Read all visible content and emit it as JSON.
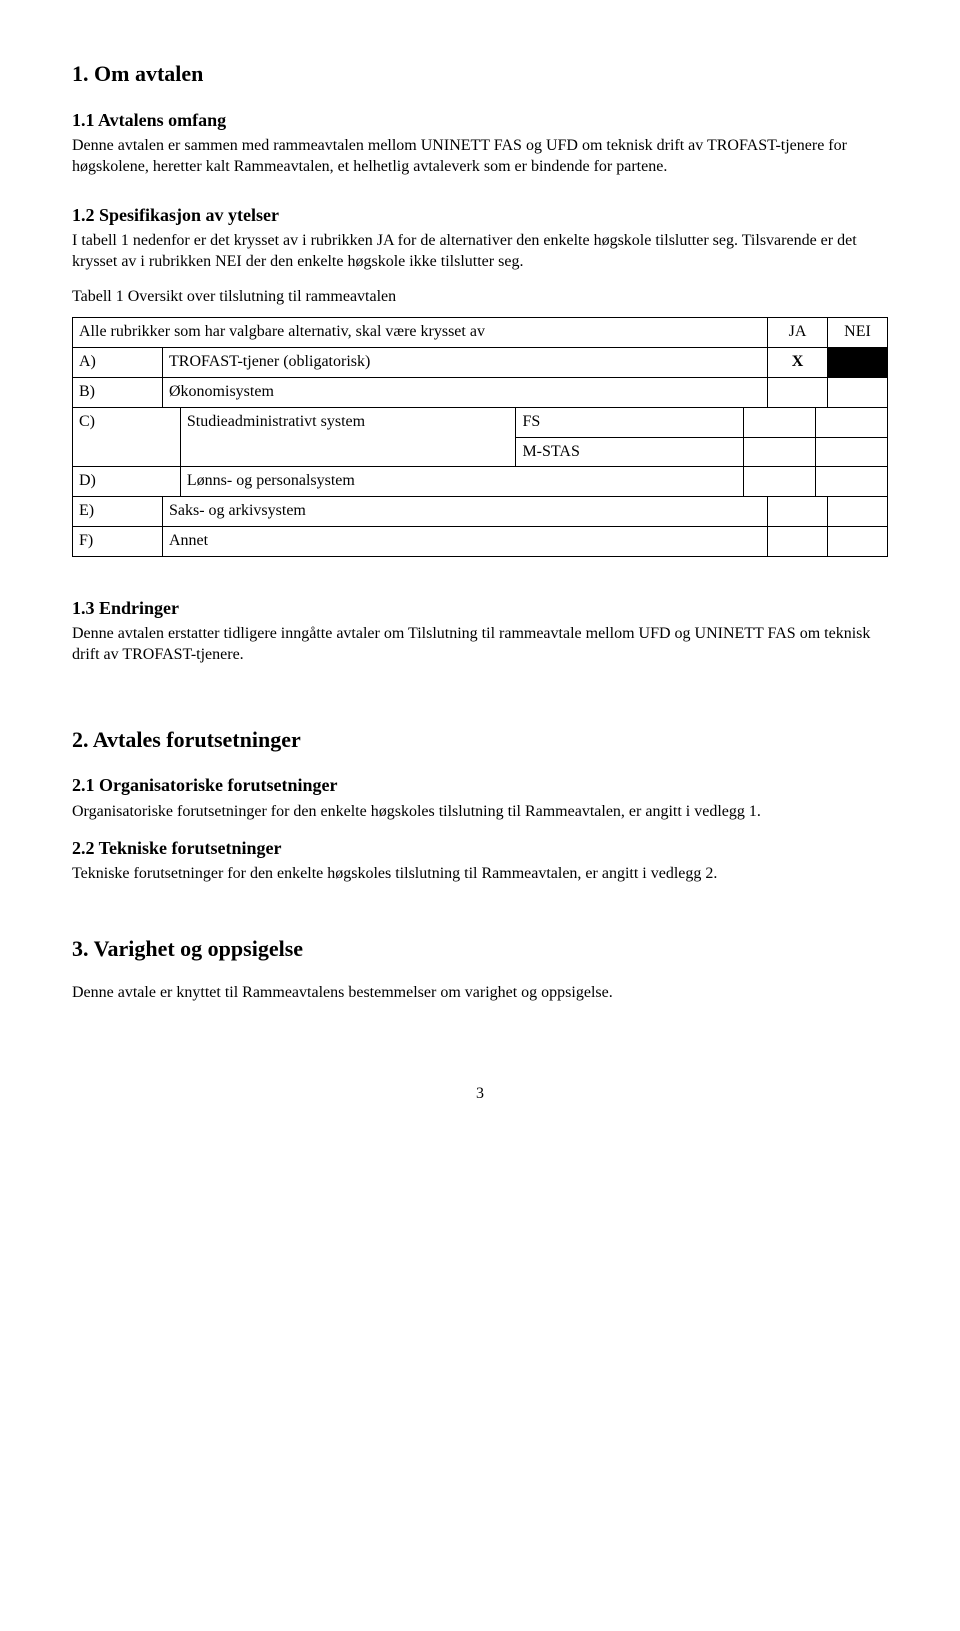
{
  "s1": {
    "title": "1. Om avtalen",
    "sub1": {
      "title": "1.1 Avtalens omfang",
      "body": "Denne avtalen er sammen med rammeavtalen mellom UNINETT FAS og UFD om teknisk drift av TROFAST-tjenere for høgskolene, heretter kalt Rammeavtalen, et helhetlig avtaleverk som er bindende for partene."
    },
    "sub2": {
      "title": "1.2 Spesifikasjon av ytelser",
      "body": "I tabell 1 nedenfor er det krysset av i rubrikken JA for de alternativer den enkelte høgskole tilslutter seg. Tilsvarende er det krysset av i rubrikken NEI der den enkelte høgskole ikke tilslutter seg.",
      "caption": "Tabell 1  Oversikt over tilslutning til rammeavtalen",
      "header_rubrikker": "Alle rubrikker som har valgbare alternativ, skal være krysset av",
      "header_ja": "JA",
      "header_nei": "NEI",
      "rowA": {
        "letter": "A)",
        "label": "TROFAST-tjener (obligatorisk)",
        "mark": "X"
      },
      "rowB": {
        "letter": "B)",
        "label": "Økonomisystem"
      },
      "rowC": {
        "letter": "C)",
        "label": "Studieadministrativt system",
        "opt1": "FS",
        "opt2": "M-STAS"
      },
      "rowD": {
        "letter": "D)",
        "label": "Lønns- og personalsystem"
      },
      "rowE": {
        "letter": "E)",
        "label": "Saks- og arkivsystem"
      },
      "rowF": {
        "letter": "F)",
        "label": "Annet"
      }
    },
    "sub3": {
      "title": "1.3 Endringer",
      "body": "Denne avtalen erstatter tidligere inngåtte avtaler om Tilslutning til rammeavtale mellom UFD og UNINETT FAS om teknisk drift av TROFAST-tjenere."
    }
  },
  "s2": {
    "title": "2. Avtales forutsetninger",
    "sub1": {
      "title": "2.1 Organisatoriske forutsetninger",
      "body": "Organisatoriske forutsetninger for den enkelte høgskoles tilslutning til Rammeavtalen, er angitt i vedlegg 1."
    },
    "sub2": {
      "title": "2.2 Tekniske forutsetninger",
      "body": "Tekniske forutsetninger for den enkelte høgskoles tilslutning til Rammeavtalen, er angitt i vedlegg 2."
    }
  },
  "s3": {
    "title": "3. Varighet og oppsigelse",
    "body": "Denne avtale er knyttet til Rammeavtalens bestemmelser om varighet og oppsigelse."
  },
  "pagenum": "3"
}
